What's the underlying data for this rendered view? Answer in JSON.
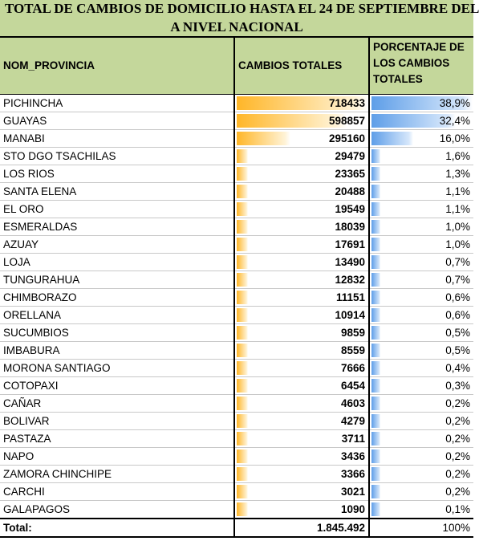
{
  "title_line1": "TOTAL DE CAMBIOS DE DOMICILIO HASTA EL 24 DE SEPTIEMBRE DEL",
  "title_line2": "A NIVEL NACIONAL",
  "headers": {
    "province": "NOM_PROVINCIA",
    "total": "CAMBIOS TOTALES",
    "percent": "PORCENTAJE DE LOS CAMBIOS TOTALES"
  },
  "colors": {
    "header_bg": "#c4d79b",
    "bar_orange": "#ffb628",
    "bar_blue": "#5e9ee8"
  },
  "rows": [
    {
      "province": "PICHINCHA",
      "total": "718433",
      "percent": "38,9%",
      "total_value": 718433,
      "percent_value": 38.9
    },
    {
      "province": "GUAYAS",
      "total": "598857",
      "percent": "32,4%",
      "total_value": 598857,
      "percent_value": 32.4
    },
    {
      "province": "MANABI",
      "total": "295160",
      "percent": "16,0%",
      "total_value": 295160,
      "percent_value": 16.0
    },
    {
      "province": "STO DGO TSACHILAS",
      "total": "29479",
      "percent": "1,6%",
      "total_value": 29479,
      "percent_value": 1.6
    },
    {
      "province": "LOS RIOS",
      "total": "23365",
      "percent": "1,3%",
      "total_value": 23365,
      "percent_value": 1.3
    },
    {
      "province": "SANTA ELENA",
      "total": "20488",
      "percent": "1,1%",
      "total_value": 20488,
      "percent_value": 1.1
    },
    {
      "province": "EL ORO",
      "total": "19549",
      "percent": "1,1%",
      "total_value": 19549,
      "percent_value": 1.1
    },
    {
      "province": "ESMERALDAS",
      "total": "18039",
      "percent": "1,0%",
      "total_value": 18039,
      "percent_value": 1.0
    },
    {
      "province": "AZUAY",
      "total": "17691",
      "percent": "1,0%",
      "total_value": 17691,
      "percent_value": 1.0
    },
    {
      "province": "LOJA",
      "total": "13490",
      "percent": "0,7%",
      "total_value": 13490,
      "percent_value": 0.7
    },
    {
      "province": "TUNGURAHUA",
      "total": "12832",
      "percent": "0,7%",
      "total_value": 12832,
      "percent_value": 0.7
    },
    {
      "province": "CHIMBORAZO",
      "total": "11151",
      "percent": "0,6%",
      "total_value": 11151,
      "percent_value": 0.6
    },
    {
      "province": "ORELLANA",
      "total": "10914",
      "percent": "0,6%",
      "total_value": 10914,
      "percent_value": 0.6
    },
    {
      "province": "SUCUMBIOS",
      "total": "9859",
      "percent": "0,5%",
      "total_value": 9859,
      "percent_value": 0.5
    },
    {
      "province": "IMBABURA",
      "total": "8559",
      "percent": "0,5%",
      "total_value": 8559,
      "percent_value": 0.5
    },
    {
      "province": "MORONA SANTIAGO",
      "total": "7666",
      "percent": "0,4%",
      "total_value": 7666,
      "percent_value": 0.4
    },
    {
      "province": "COTOPAXI",
      "total": "6454",
      "percent": "0,3%",
      "total_value": 6454,
      "percent_value": 0.3
    },
    {
      "province": "CAÑAR",
      "total": "4603",
      "percent": "0,2%",
      "total_value": 4603,
      "percent_value": 0.2
    },
    {
      "province": "BOLIVAR",
      "total": "4279",
      "percent": "0,2%",
      "total_value": 4279,
      "percent_value": 0.2
    },
    {
      "province": "PASTAZA",
      "total": "3711",
      "percent": "0,2%",
      "total_value": 3711,
      "percent_value": 0.2
    },
    {
      "province": "NAPO",
      "total": "3436",
      "percent": "0,2%",
      "total_value": 3436,
      "percent_value": 0.2
    },
    {
      "province": "ZAMORA CHINCHIPE",
      "total": "3366",
      "percent": "0,2%",
      "total_value": 3366,
      "percent_value": 0.2
    },
    {
      "province": "CARCHI",
      "total": "3021",
      "percent": "0,2%",
      "total_value": 3021,
      "percent_value": 0.2
    },
    {
      "province": "GALAPAGOS",
      "total": "1090",
      "percent": "0,1%",
      "total_value": 1090,
      "percent_value": 0.1
    }
  ],
  "footer": {
    "label": "Total:",
    "total": "1.845.492",
    "percent": "100%"
  }
}
